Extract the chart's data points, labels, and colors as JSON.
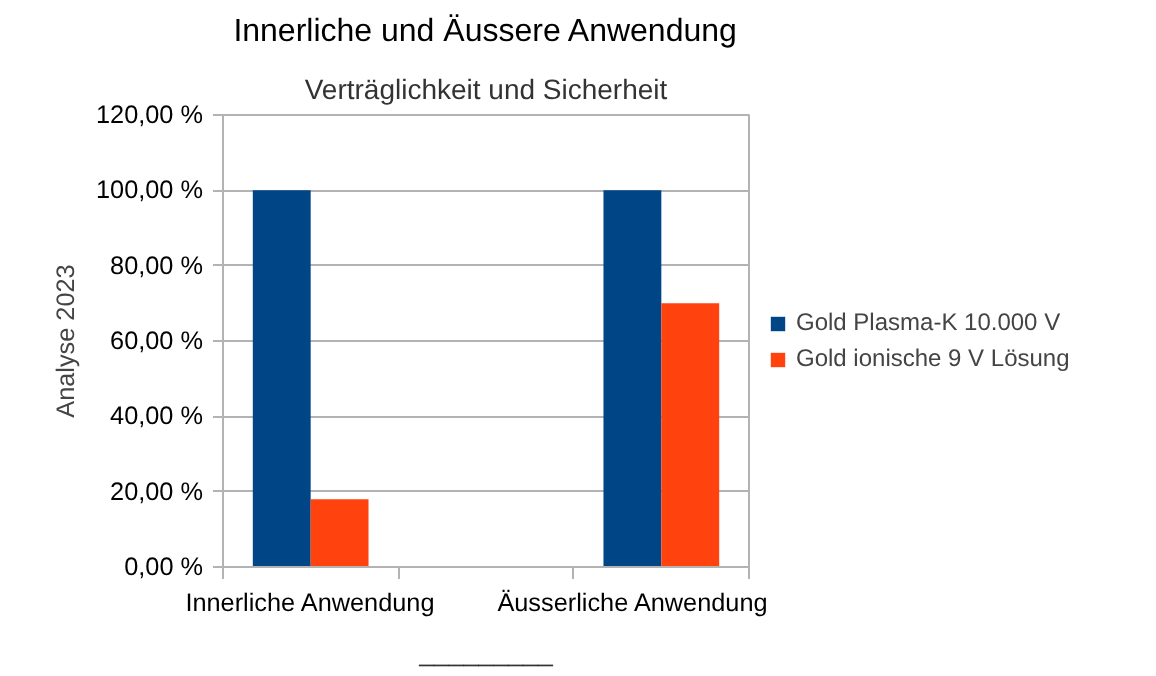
{
  "chart_data": {
    "type": "bar",
    "title": "Innerliche und Äussere Anwendung",
    "subtitle": "Verträglichkeit und Sicherheit",
    "ylabel": "Analyse 2023",
    "categories": [
      "Innerliche Anwendung",
      null,
      "Äusserliche Anwendung"
    ],
    "series": [
      {
        "name": "Gold Plasma-K 10.000 V",
        "color": "#004586",
        "values": [
          100,
          null,
          100
        ]
      },
      {
        "name": "Gold ionische 9 V Lösung",
        "color": "#ff420e",
        "values": [
          18,
          null,
          70
        ]
      }
    ],
    "ylim": [
      0,
      120
    ],
    "yticks": [
      {
        "value": 0,
        "label": "0,00 %"
      },
      {
        "value": 20,
        "label": "20,00 %"
      },
      {
        "value": 40,
        "label": "40,00 %"
      },
      {
        "value": 60,
        "label": "60,00 %"
      },
      {
        "value": 80,
        "label": "80,00 %"
      },
      {
        "value": 100,
        "label": "100,00 %"
      },
      {
        "value": 120,
        "label": "120,00 %"
      }
    ],
    "grid": "y",
    "legend": "right",
    "annotations": [
      "_________"
    ]
  }
}
